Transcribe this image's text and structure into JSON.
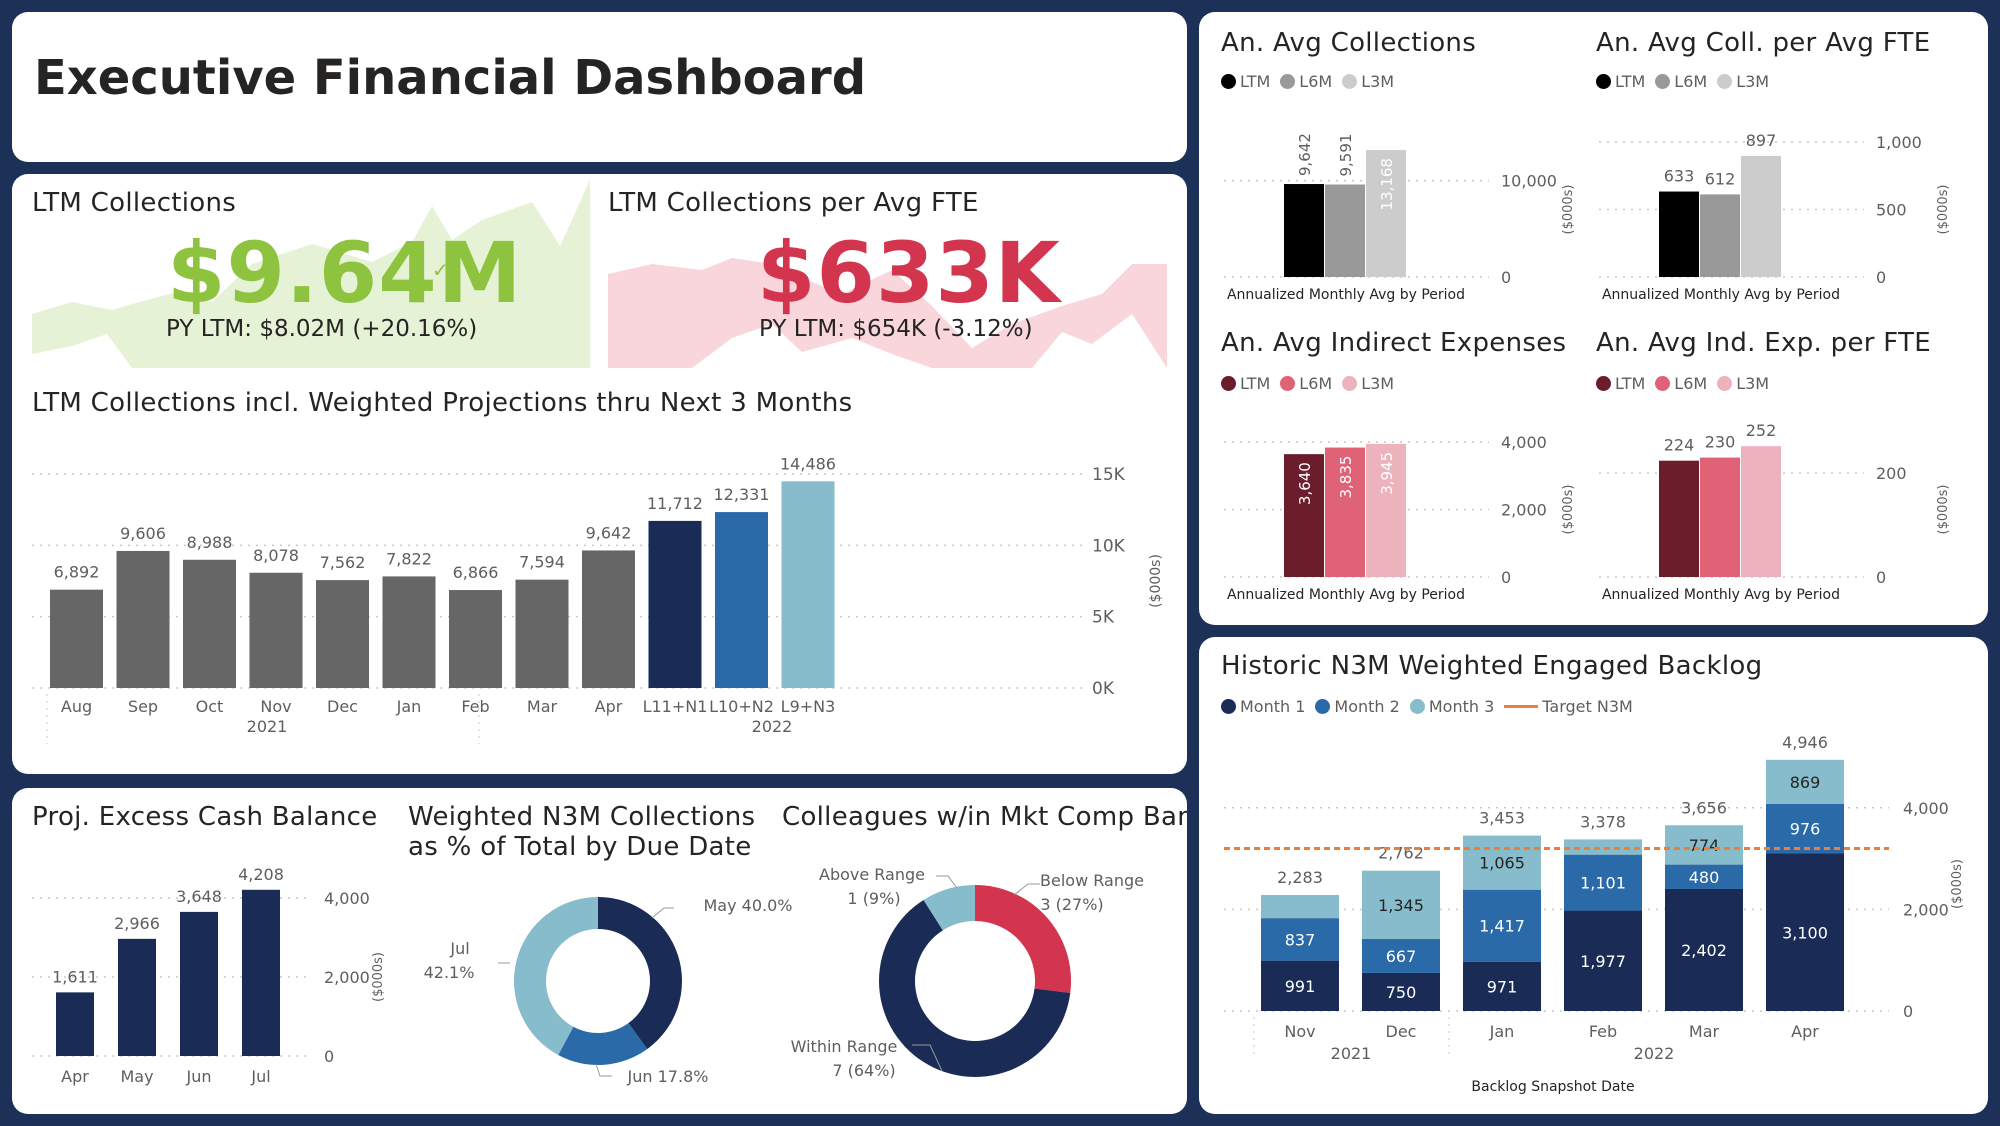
{
  "header": {
    "title": "Executive Financial Dashboard"
  },
  "colors": {
    "green": "#8dc33e",
    "red": "#d4354e",
    "navy": "#1a2c55",
    "blue": "#2a6aa8",
    "lightblue": "#86bccb",
    "gray": "#666666",
    "black": "#000000",
    "midgray": "#999999",
    "lightgray": "#cccccc",
    "maroon": "#6b1d2c",
    "rose": "#df6277",
    "pink": "#ecb3bd",
    "orange": "#e9803a"
  },
  "kpi_collections": {
    "title": "LTM Collections",
    "value": "$9.64M",
    "indicator": "✓",
    "sub": "PY LTM: $8.02M (+20.16%)"
  },
  "kpi_per_fte": {
    "title": "LTM Collections per Avg FTE",
    "value": "$633K",
    "indicator": "!",
    "sub": "PY LTM: $654K (-3.12%)"
  },
  "chart_data": [
    {
      "id": "ltm_projections",
      "type": "bar",
      "title": "LTM Collections incl. Weighted Projections thru Next 3 Months",
      "categories": [
        "Aug",
        "Sep",
        "Oct",
        "Nov",
        "Dec",
        "Jan",
        "Feb",
        "Mar",
        "Apr",
        "L11+N1",
        "L10+N2",
        "L9+N3"
      ],
      "values": [
        6892,
        9606,
        8988,
        8078,
        7562,
        7822,
        6866,
        7594,
        9642,
        11712,
        12331,
        14486
      ],
      "labels": [
        "6,892",
        "9,606",
        "8,988",
        "8,078",
        "7,562",
        "7,822",
        "6,866",
        "7,594",
        "9,642",
        "11,712",
        "12,331",
        "14,486"
      ],
      "year_labels": [
        "2021",
        "2022"
      ],
      "yticks": [
        "0K",
        "5K",
        "10K",
        "15K"
      ],
      "ylabel": "($000s)",
      "ylim": [
        0,
        15000
      ]
    },
    {
      "id": "avg_collections",
      "type": "bar",
      "title": "An. Avg Collections",
      "legend": [
        "LTM",
        "L6M",
        "L3M"
      ],
      "values": [
        9642,
        9591,
        13168
      ],
      "labels": [
        "9,642",
        "9,591",
        "13,168"
      ],
      "xlabel": "Annualized Monthly Avg by Period",
      "yticks": [
        "0",
        "10,000"
      ],
      "ylabel": "($000s)",
      "ylim": [
        0,
        14000
      ]
    },
    {
      "id": "avg_coll_fte",
      "type": "bar",
      "title": "An. Avg Coll. per Avg FTE",
      "legend": [
        "LTM",
        "L6M",
        "L3M"
      ],
      "values": [
        633,
        612,
        897
      ],
      "labels": [
        "633",
        "612",
        "897"
      ],
      "xlabel": "Annualized Monthly Avg by Period",
      "yticks": [
        "0",
        "500",
        "1,000"
      ],
      "ylabel": "($000s)",
      "ylim": [
        0,
        1000
      ]
    },
    {
      "id": "avg_indirect",
      "type": "bar",
      "title": "An. Avg Indirect Expenses",
      "legend": [
        "LTM",
        "L6M",
        "L3M"
      ],
      "values": [
        3640,
        3835,
        3945
      ],
      "labels": [
        "3,640",
        "3,835",
        "3,945"
      ],
      "xlabel": "Annualized Monthly Avg by Period",
      "yticks": [
        "0",
        "2,000",
        "4,000"
      ],
      "ylabel": "($000s)",
      "ylim": [
        0,
        4000
      ]
    },
    {
      "id": "avg_ind_fte",
      "type": "bar",
      "title": "An. Avg Ind. Exp. per FTE",
      "legend": [
        "LTM",
        "L6M",
        "L3M"
      ],
      "values": [
        224,
        230,
        252
      ],
      "labels": [
        "224",
        "230",
        "252"
      ],
      "xlabel": "Annualized Monthly Avg by Period",
      "yticks": [
        "0",
        "200"
      ],
      "ylabel": "($000s)",
      "ylim": [
        0,
        260
      ]
    },
    {
      "id": "backlog",
      "type": "bar",
      "title": "Historic N3M Weighted Engaged Backlog",
      "legend": [
        "Month 1",
        "Month 2",
        "Month 3",
        "Target N3M"
      ],
      "categories": [
        "Nov",
        "Dec",
        "Jan",
        "Feb",
        "Mar",
        "Apr"
      ],
      "series": [
        {
          "name": "Month 1",
          "values": [
            991,
            750,
            971,
            1977,
            2402,
            3100
          ],
          "labels": [
            "991",
            "750",
            "971",
            "1,977",
            "2,402",
            "3,100"
          ]
        },
        {
          "name": "Month 2",
          "values": [
            837,
            667,
            1417,
            1101,
            480,
            976
          ],
          "labels": [
            "837",
            "667",
            "1,417",
            "1,101",
            "480",
            "976"
          ]
        },
        {
          "name": "Month 3",
          "values": [
            455,
            1345,
            1065,
            300,
            774,
            869
          ],
          "labels": [
            "",
            "1,345",
            "1,065",
            "",
            "774",
            "869"
          ]
        }
      ],
      "totals": [
        "2,283",
        "2,762",
        "3,453",
        "3,378",
        "3,656",
        "4,946"
      ],
      "target": 3200,
      "year_labels": [
        "2021",
        "2022"
      ],
      "xlabel": "Backlog Snapshot Date",
      "yticks": [
        "0",
        "2,000",
        "4,000"
      ],
      "ylabel": "($000s)",
      "ylim": [
        0,
        5000
      ]
    },
    {
      "id": "excess_cash",
      "type": "bar",
      "title": "Proj. Excess Cash Balance",
      "categories": [
        "Apr",
        "May",
        "Jun",
        "Jul"
      ],
      "values": [
        1611,
        2966,
        3648,
        4208
      ],
      "labels": [
        "1,611",
        "2,966",
        "3,648",
        "4,208"
      ],
      "yticks": [
        "0",
        "2,000",
        "4,000"
      ],
      "ylabel": "($000s)",
      "ylim": [
        0,
        4000
      ]
    },
    {
      "id": "n3m_due",
      "type": "pie",
      "title": "Weighted N3M Collections as % of Total by Due Date",
      "categories": [
        "May",
        "Jun",
        "Jul"
      ],
      "values": [
        40.0,
        17.8,
        42.1
      ],
      "labels": [
        "May 40.0%",
        "Jun 17.8%",
        "Jul",
        "42.1%"
      ]
    },
    {
      "id": "comp_band",
      "type": "pie",
      "title": "Colleagues w/in Mkt Comp Band",
      "categories": [
        "Below Range",
        "Within Range",
        "Above Range"
      ],
      "values": [
        27,
        64,
        9
      ],
      "labels": [
        "Below Range",
        "3 (27%)",
        "Within Range",
        "7 (64%)",
        "Above Range",
        "1 (9%)"
      ]
    }
  ]
}
